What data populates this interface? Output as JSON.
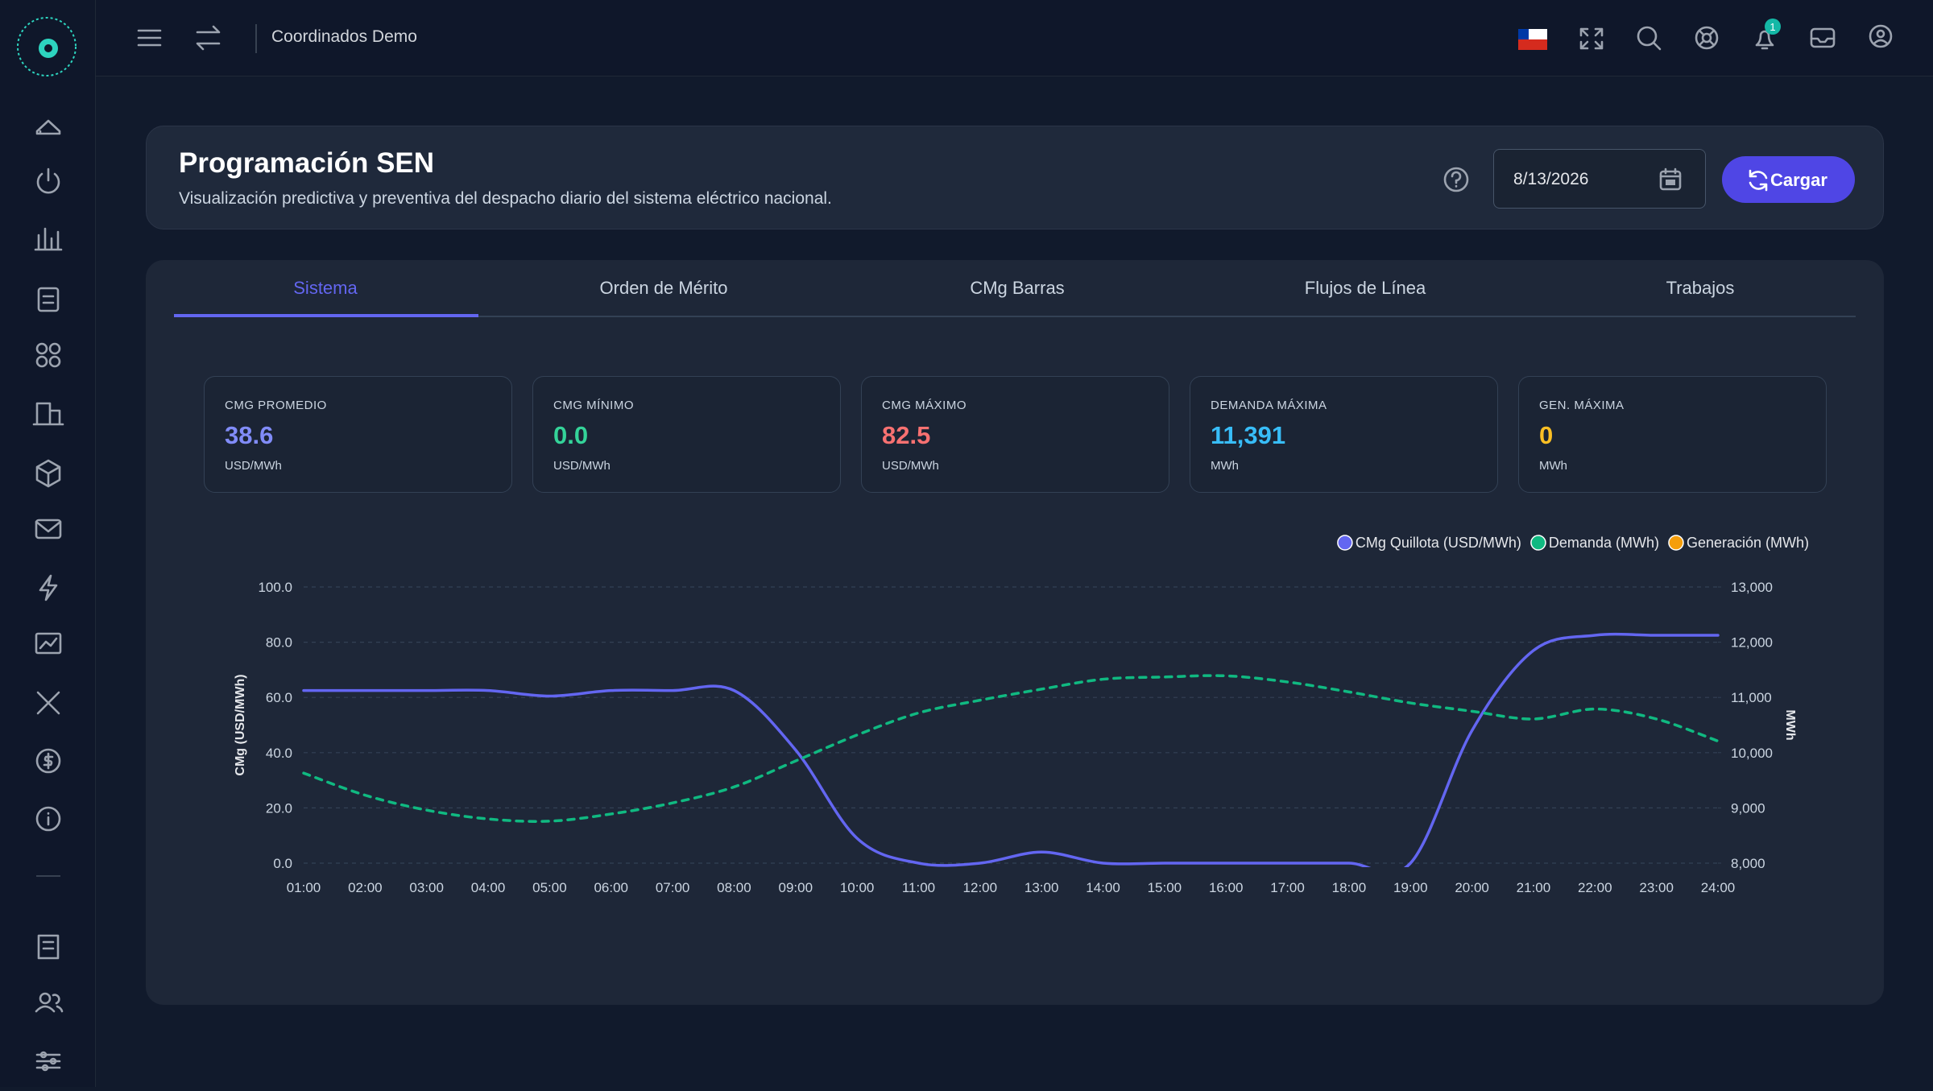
{
  "topbar": {
    "org": "Coordinados Demo",
    "notifications": "1"
  },
  "header": {
    "title": "Programación SEN",
    "subtitle": "Visualización predictiva y preventiva del despacho diario del sistema eléctrico nacional.",
    "date": "8/13/2026",
    "button": "Cargar"
  },
  "tabs": [
    "Sistema",
    "Orden de Mérito",
    "CMg Barras",
    "Flujos de Línea",
    "Trabajos"
  ],
  "kpis": [
    {
      "label": "CMG PROMEDIO",
      "value": "38.6",
      "unit": "USD/MWh",
      "color": "#818cf8"
    },
    {
      "label": "CMG MÍNIMO",
      "value": "0.0",
      "unit": "USD/MWh",
      "color": "#34d399"
    },
    {
      "label": "CMG MÁXIMO",
      "value": "82.5",
      "unit": "USD/MWh",
      "color": "#f87171"
    },
    {
      "label": "DEMANDA MÁXIMA",
      "value": "11,391",
      "unit": "MWh",
      "color": "#38bdf8"
    },
    {
      "label": "GEN. MÁXIMA",
      "value": "0",
      "unit": "MWh",
      "color": "#fbbf24"
    }
  ],
  "chart_data": {
    "type": "line",
    "ylabel": "CMg (USD/MWh)",
    "y2label": "MWh",
    "categories": [
      "01:00",
      "02:00",
      "03:00",
      "04:00",
      "05:00",
      "06:00",
      "07:00",
      "08:00",
      "09:00",
      "10:00",
      "11:00",
      "12:00",
      "13:00",
      "14:00",
      "15:00",
      "16:00",
      "17:00",
      "18:00",
      "19:00",
      "20:00",
      "21:00",
      "22:00",
      "23:00",
      "24:00"
    ],
    "series": [
      {
        "name": "CMg Quillota (USD/MWh)",
        "color": "#6366f1",
        "dashed": false,
        "values": [
          62.5,
          62.5,
          62.5,
          62.5,
          60.5,
          62.5,
          62.5,
          62.5,
          41,
          9,
          0,
          0,
          4,
          0,
          0,
          0,
          0,
          0,
          0,
          48,
          77,
          82.5,
          82.5,
          82.5
        ]
      },
      {
        "name": "Demanda (MWh)",
        "color": "#10b981",
        "axis": "y2",
        "dashed": true,
        "values": [
          9630,
          9230,
          8960,
          8800,
          8760,
          8890,
          9090,
          9380,
          9850,
          10320,
          10720,
          10950,
          11150,
          11330,
          11370,
          11391,
          11280,
          11100,
          10900,
          10750,
          10610,
          10790,
          10610,
          10210
        ]
      },
      {
        "name": "Generación (MWh)",
        "color": "#f59e0b",
        "axis": "y2",
        "dashed": false,
        "values": [
          null,
          null,
          null,
          null,
          null,
          null,
          null,
          null,
          null,
          null,
          null,
          null,
          null,
          null,
          null,
          null,
          null,
          null,
          null,
          null,
          null,
          null,
          null,
          null
        ]
      }
    ],
    "ylim": [
      0,
      100
    ],
    "yticks": [
      {
        "value": 0,
        "label": "0.0"
      },
      {
        "value": 20,
        "label": "20.0"
      },
      {
        "value": 40,
        "label": "40.0"
      },
      {
        "value": 60,
        "label": "60.0"
      },
      {
        "value": 80,
        "label": "80.0"
      },
      {
        "value": 100,
        "label": "100.0"
      }
    ],
    "y2lim": [
      8000,
      13000
    ],
    "y2ticks": [
      {
        "value": 8000,
        "label": "8,000"
      },
      {
        "value": 9000,
        "label": "9,000"
      },
      {
        "value": 10000,
        "label": "10,000"
      },
      {
        "value": 11000,
        "label": "11,000"
      },
      {
        "value": 12000,
        "label": "12,000"
      },
      {
        "value": 13000,
        "label": "13,000"
      }
    ],
    "grid": true,
    "legend": "top-right"
  }
}
